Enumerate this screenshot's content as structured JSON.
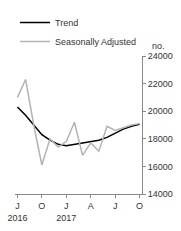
{
  "chart_data": {
    "type": "line",
    "categories": [
      "J\n2016",
      null,
      null,
      "O",
      null,
      null,
      "J\n2017",
      null,
      null,
      "A",
      null,
      null,
      "J",
      null,
      null,
      "O"
    ],
    "series": [
      {
        "name": "Trend",
        "color": "#000000",
        "values": [
          20300,
          19700,
          19000,
          18300,
          17900,
          17600,
          17500,
          17600,
          17700,
          17800,
          17900,
          18100,
          18400,
          18700,
          18900,
          19050
        ]
      },
      {
        "name": "Seasonally Adjusted",
        "color": "#b3b3b3",
        "values": [
          21000,
          22300,
          19000,
          16100,
          18000,
          17400,
          17800,
          19200,
          16800,
          17700,
          17100,
          18900,
          18600,
          18800,
          19000,
          19100
        ]
      }
    ],
    "ylabel": "no.",
    "ylim": [
      14000,
      24000
    ],
    "yticks": [
      14000,
      16000,
      18000,
      20000,
      22000,
      24000
    ],
    "grid": false,
    "legend": "top left"
  }
}
